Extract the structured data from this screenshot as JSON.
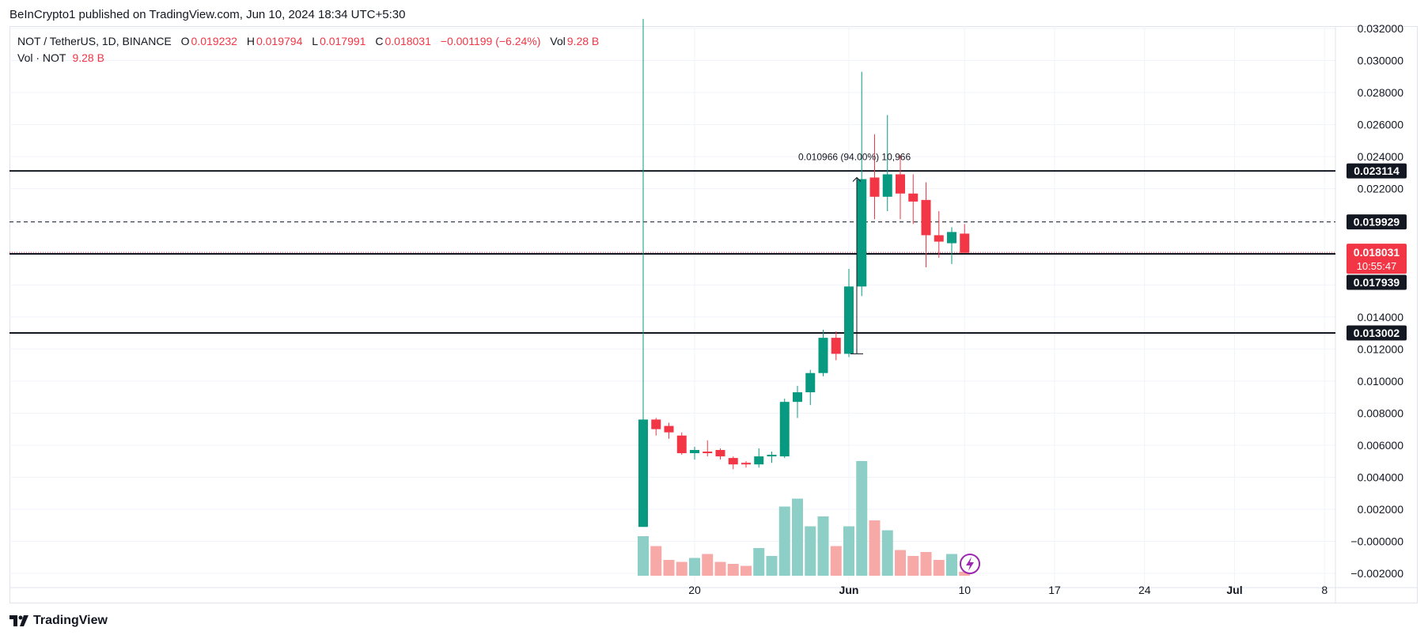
{
  "header": {
    "published": "BeInCrypto1 published on TradingView.com, Jun 10, 2024 18:34 UTC+5:30"
  },
  "legend": {
    "symbol": "NOT / TetherUS, 1D, BINANCE",
    "o_label": "O",
    "o_value": "0.019232",
    "h_label": "H",
    "h_value": "0.019794",
    "l_label": "L",
    "l_value": "0.017991",
    "c_label": "C",
    "c_value": "0.018031",
    "change": "−0.001199 (−6.24%)",
    "vol_label": "Vol",
    "vol_value": "9.28 B",
    "vol_line_label": "Vol · NOT",
    "vol_line_value": "9.28 B"
  },
  "footer": {
    "brand": "TradingView"
  },
  "colors": {
    "up": "#089981",
    "down": "#f23645",
    "vol_up": "#8dcfc6",
    "vol_down": "#f7a9a7",
    "grid": "#f0f3fa",
    "text": "#131722"
  },
  "chart_data": {
    "type": "candlestick",
    "symbol": "NOT / TetherUS",
    "interval": "1D",
    "exchange": "BINANCE",
    "x_ticks": [
      "20",
      "Jun",
      "10",
      "17",
      "24",
      "Jul",
      "8"
    ],
    "x_tick_days": [
      20,
      32,
      41,
      48,
      55,
      62,
      69
    ],
    "y_ticks": [
      "0.032000",
      "0.030000",
      "0.028000",
      "0.026000",
      "0.024000",
      "0.022000",
      "0.020000",
      "0.018000",
      "0.016000",
      "0.014000",
      "0.012000",
      "0.010000",
      "0.008000",
      "0.006000",
      "0.004000",
      "0.002000",
      "−0.000000",
      "−0.002000"
    ],
    "y_tick_values": [
      0.032,
      0.03,
      0.028,
      0.026,
      0.024,
      0.022,
      0.02,
      0.018,
      0.016,
      0.014,
      0.012,
      0.01,
      0.008,
      0.006,
      0.004,
      0.002,
      0.0,
      -0.002
    ],
    "ylim": [
      -0.0024,
      0.0322
    ],
    "candles": [
      {
        "d": 16,
        "o": 0.0009,
        "h": 0.0326,
        "l": 0.0009,
        "c": 0.0076
      },
      {
        "d": 17,
        "o": 0.0076,
        "h": 0.0077,
        "l": 0.0066,
        "c": 0.007
      },
      {
        "d": 18,
        "o": 0.0072,
        "h": 0.0074,
        "l": 0.0064,
        "c": 0.0068
      },
      {
        "d": 19,
        "o": 0.0066,
        "h": 0.0068,
        "l": 0.0054,
        "c": 0.0055
      },
      {
        "d": 20,
        "o": 0.0055,
        "h": 0.0059,
        "l": 0.0051,
        "c": 0.0057
      },
      {
        "d": 21,
        "o": 0.0056,
        "h": 0.0063,
        "l": 0.0053,
        "c": 0.0055
      },
      {
        "d": 22,
        "o": 0.0057,
        "h": 0.0058,
        "l": 0.0051,
        "c": 0.0053
      },
      {
        "d": 23,
        "o": 0.0052,
        "h": 0.0053,
        "l": 0.0045,
        "c": 0.0048
      },
      {
        "d": 24,
        "o": 0.0049,
        "h": 0.005,
        "l": 0.0046,
        "c": 0.0048
      },
      {
        "d": 25,
        "o": 0.0048,
        "h": 0.0058,
        "l": 0.0046,
        "c": 0.0053
      },
      {
        "d": 26,
        "o": 0.0053,
        "h": 0.0056,
        "l": 0.0049,
        "c": 0.0054
      },
      {
        "d": 27,
        "o": 0.0053,
        "h": 0.0089,
        "l": 0.0052,
        "c": 0.0087
      },
      {
        "d": 28,
        "o": 0.0087,
        "h": 0.0097,
        "l": 0.0077,
        "c": 0.0093
      },
      {
        "d": 29,
        "o": 0.0093,
        "h": 0.0107,
        "l": 0.0085,
        "c": 0.0105
      },
      {
        "d": 30,
        "o": 0.0105,
        "h": 0.0132,
        "l": 0.0103,
        "c": 0.0127
      },
      {
        "d": 31,
        "o": 0.0127,
        "h": 0.0131,
        "l": 0.0113,
        "c": 0.0117
      },
      {
        "d": 32,
        "o": 0.0117,
        "h": 0.017,
        "l": 0.0115,
        "c": 0.0159
      },
      {
        "d": 33,
        "o": 0.0159,
        "h": 0.0293,
        "l": 0.0153,
        "c": 0.0226
      },
      {
        "d": 34,
        "o": 0.0227,
        "h": 0.0254,
        "l": 0.0201,
        "c": 0.0215
      },
      {
        "d": 35,
        "o": 0.0215,
        "h": 0.0266,
        "l": 0.0206,
        "c": 0.0229
      },
      {
        "d": 36,
        "o": 0.0229,
        "h": 0.0241,
        "l": 0.0201,
        "c": 0.0217
      },
      {
        "d": 37,
        "o": 0.0217,
        "h": 0.0229,
        "l": 0.0198,
        "c": 0.0212
      },
      {
        "d": 38,
        "o": 0.0213,
        "h": 0.0224,
        "l": 0.0171,
        "c": 0.0191
      },
      {
        "d": 39,
        "o": 0.0191,
        "h": 0.0206,
        "l": 0.0177,
        "c": 0.0187
      },
      {
        "d": 40,
        "o": 0.0186,
        "h": 0.0196,
        "l": 0.0173,
        "c": 0.0193
      },
      {
        "d": 41,
        "o": 0.0192,
        "h": 0.0198,
        "l": 0.018,
        "c": 0.018
      }
    ],
    "volume": [
      {
        "d": 16,
        "v": 0.2,
        "up": true
      },
      {
        "d": 17,
        "v": 0.15,
        "up": false
      },
      {
        "d": 18,
        "v": 0.08,
        "up": false
      },
      {
        "d": 19,
        "v": 0.07,
        "up": false
      },
      {
        "d": 20,
        "v": 0.09,
        "up": true
      },
      {
        "d": 21,
        "v": 0.11,
        "up": false
      },
      {
        "d": 22,
        "v": 0.07,
        "up": false
      },
      {
        "d": 23,
        "v": 0.06,
        "up": false
      },
      {
        "d": 24,
        "v": 0.05,
        "up": false
      },
      {
        "d": 25,
        "v": 0.14,
        "up": true
      },
      {
        "d": 26,
        "v": 0.1,
        "up": true
      },
      {
        "d": 27,
        "v": 0.35,
        "up": true
      },
      {
        "d": 28,
        "v": 0.39,
        "up": true
      },
      {
        "d": 29,
        "v": 0.25,
        "up": true
      },
      {
        "d": 30,
        "v": 0.3,
        "up": true
      },
      {
        "d": 31,
        "v": 0.15,
        "up": false
      },
      {
        "d": 32,
        "v": 0.25,
        "up": true
      },
      {
        "d": 33,
        "v": 0.58,
        "up": true
      },
      {
        "d": 34,
        "v": 0.28,
        "up": false
      },
      {
        "d": 35,
        "v": 0.23,
        "up": true
      },
      {
        "d": 36,
        "v": 0.13,
        "up": false
      },
      {
        "d": 37,
        "v": 0.1,
        "up": false
      },
      {
        "d": 38,
        "v": 0.12,
        "up": false
      },
      {
        "d": 39,
        "v": 0.08,
        "up": false
      },
      {
        "d": 40,
        "v": 0.11,
        "up": true
      },
      {
        "d": 41,
        "v": 0.02,
        "up": false
      }
    ],
    "horizontal_lines": [
      {
        "price": 0.023114,
        "style": "solid",
        "label": "0.023114"
      },
      {
        "price": 0.019929,
        "style": "dashed",
        "label": "0.019929"
      },
      {
        "price": 0.017939,
        "style": "solid",
        "label": "0.017939"
      },
      {
        "price": 0.013002,
        "style": "solid",
        "label": "0.013002"
      }
    ],
    "last_price": {
      "value": "0.018031",
      "countdown": "10:55:47"
    },
    "measure": {
      "label": "0.010966 (94.00%) 10,966",
      "from_day": 32,
      "to_day": 32,
      "from_price": 0.0117,
      "to_price": 0.0227
    }
  }
}
